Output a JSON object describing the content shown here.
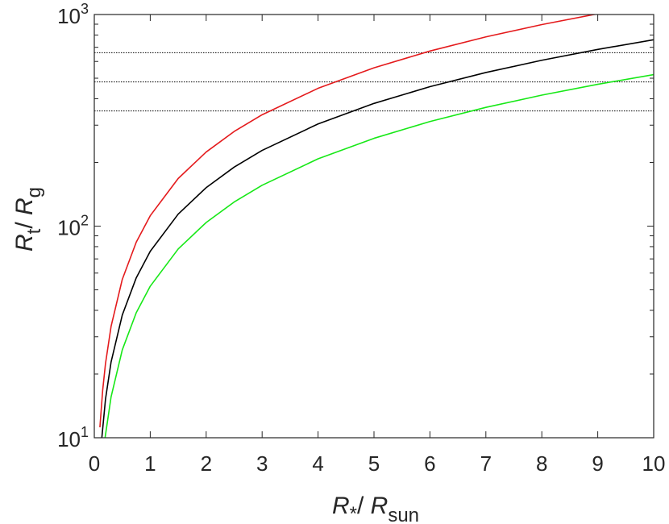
{
  "chart_data": {
    "type": "line",
    "title": "",
    "xlabel": {
      "main": "R",
      "main_sub": "*",
      "sep": "/ ",
      "denom": "R",
      "denom_sub": "sun"
    },
    "ylabel": {
      "main": "R",
      "main_sub": "t",
      "sep": "/ ",
      "denom": "R",
      "denom_sub": "g"
    },
    "xlim": [
      0,
      10
    ],
    "ylim": [
      10,
      1000
    ],
    "yscale": "log",
    "grid": false,
    "legend": "none",
    "x_ticks": [
      {
        "value": 0,
        "label": "0"
      },
      {
        "value": 1,
        "label": "1"
      },
      {
        "value": 2,
        "label": "2"
      },
      {
        "value": 3,
        "label": "3"
      },
      {
        "value": 4,
        "label": "4"
      },
      {
        "value": 5,
        "label": "5"
      },
      {
        "value": 6,
        "label": "6"
      },
      {
        "value": 7,
        "label": "7"
      },
      {
        "value": 8,
        "label": "8"
      },
      {
        "value": 9,
        "label": "9"
      },
      {
        "value": 10,
        "label": "10"
      }
    ],
    "y_ticks": [
      {
        "value": 10,
        "base": "10",
        "exp": "1"
      },
      {
        "value": 100,
        "base": "10",
        "exp": "2"
      },
      {
        "value": 1000,
        "base": "10",
        "exp": "3"
      }
    ],
    "series": [
      {
        "color": "#e41a1c",
        "x": [
          0.1,
          0.15,
          0.2,
          0.3,
          0.5,
          0.75,
          1,
          1.5,
          2,
          2.5,
          3,
          4,
          5,
          6,
          7,
          8,
          9
        ],
        "y": [
          11.2,
          16.8,
          22.4,
          33.6,
          56,
          84,
          112,
          168,
          224,
          280,
          336,
          448,
          560,
          672,
          784,
          896,
          1008
        ]
      },
      {
        "color": "#000000",
        "x": [
          0.12,
          0.2,
          0.3,
          0.5,
          0.75,
          1,
          1.5,
          2,
          2.5,
          3,
          4,
          5,
          6,
          7,
          8,
          9,
          10
        ],
        "y": [
          9.1,
          15.2,
          22.8,
          38,
          57,
          76,
          114,
          152,
          190,
          228,
          304,
          380,
          456,
          532,
          608,
          684,
          760
        ]
      },
      {
        "color": "#17e817",
        "x": [
          0.19,
          0.3,
          0.5,
          0.75,
          1,
          1.5,
          2,
          2.5,
          3,
          4,
          5,
          6,
          7,
          8,
          9,
          10
        ],
        "y": [
          9.9,
          15.6,
          26,
          39,
          52,
          78,
          104,
          130,
          156,
          208,
          260,
          312,
          364,
          416,
          468,
          520
        ]
      }
    ],
    "reference_lines": [
      {
        "y": 660,
        "style": "dotted",
        "color": "#000000"
      },
      {
        "y": 480,
        "style": "dotted",
        "color": "#000000"
      },
      {
        "y": 350,
        "style": "dotted",
        "color": "#000000"
      }
    ]
  }
}
